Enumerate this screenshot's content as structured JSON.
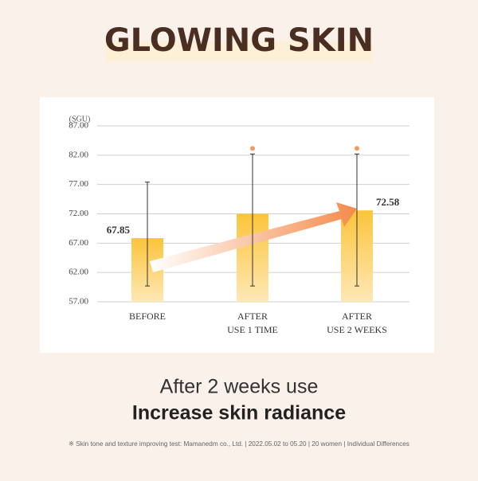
{
  "header": {
    "title": "GLOWING SKIN"
  },
  "chart_data": {
    "type": "bar",
    "y_unit": "(SGU)",
    "categories": [
      [
        "BEFORE"
      ],
      [
        "AFTER",
        "USE 1 TIME"
      ],
      [
        "AFTER",
        "USE 2 WEEKS"
      ]
    ],
    "values": [
      67.85,
      72.0,
      72.58
    ],
    "value_labels": [
      "67.85",
      null,
      "72.58"
    ],
    "error_bars": [
      {
        "low": 59.7,
        "high": 77.4
      },
      {
        "low": 59.7,
        "high": 82.2
      },
      {
        "low": 59.7,
        "high": 82.2
      }
    ],
    "significant": [
      false,
      true,
      true
    ],
    "color": "#fcc43a",
    "ylim": [
      57,
      87
    ],
    "yticks": [
      {
        "value": 57,
        "label": "57.00"
      },
      {
        "value": 62,
        "label": "62.00"
      },
      {
        "value": 67,
        "label": "67.00"
      },
      {
        "value": 72,
        "label": "72.00"
      },
      {
        "value": 77,
        "label": "77.00"
      },
      {
        "value": 82,
        "label": "82.00"
      },
      {
        "value": 87,
        "label": "87.00"
      }
    ],
    "grid": true
  },
  "summary": {
    "line1": "After 2 weeks use",
    "line2": "Increase skin radiance"
  },
  "footnote": "※ Skin tone and texture improving test: Mamanedm co., Ltd. | 2022.05.02 to 05.20 | 20 women | Individual Differences"
}
